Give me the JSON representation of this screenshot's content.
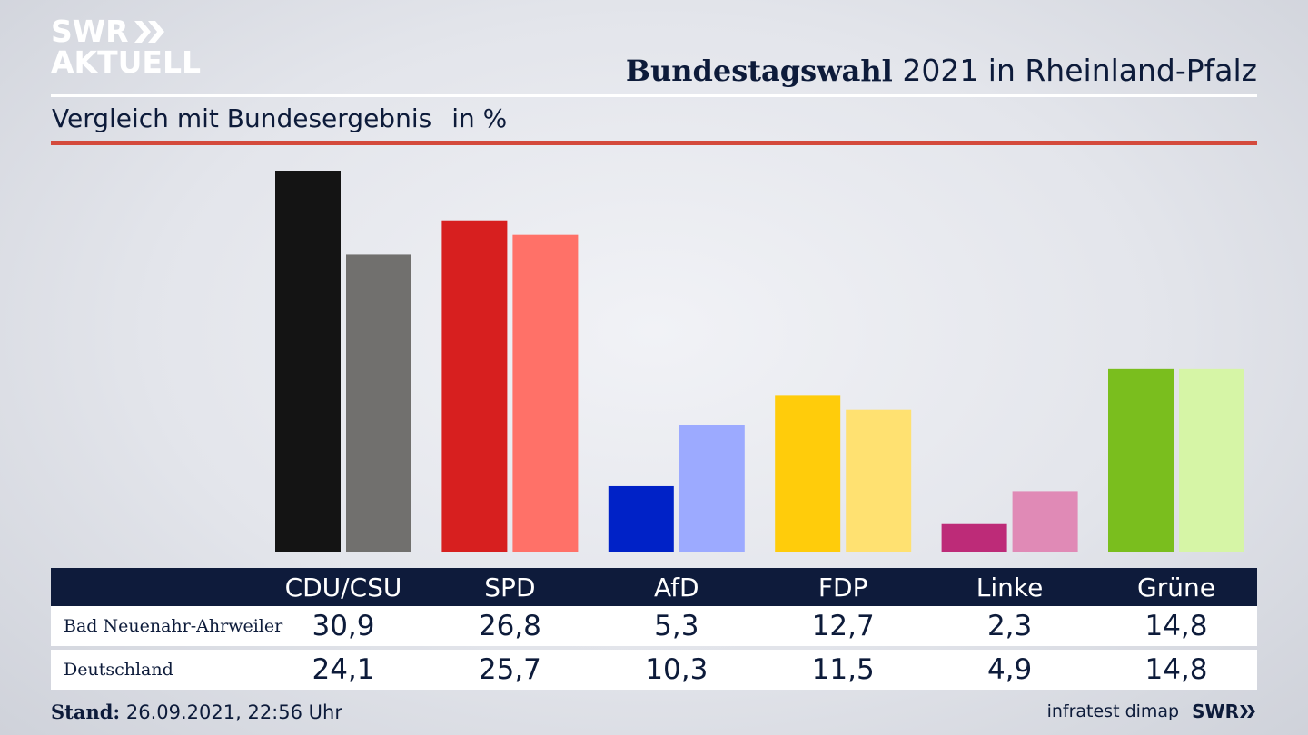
{
  "brand": {
    "line1": "SWR",
    "line2": "AKTUELL"
  },
  "header": {
    "title_bold": "Bundestagswahl",
    "title_rest": "2021 in Rheinland-Pfalz",
    "subtitle": "Vergleich mit Bundesergebnis",
    "unit": "in %"
  },
  "colors": {
    "navy": "#0e1b3b",
    "accent_red_line": "#d44a3c"
  },
  "chart_data": {
    "type": "bar",
    "title": "Bundestagswahl 2021 in Rheinland-Pfalz – Vergleich mit Bundesergebnis",
    "ylabel": "in %",
    "ylim": [
      0,
      31
    ],
    "categories": [
      "CDU/CSU",
      "SPD",
      "AfD",
      "FDP",
      "Linke",
      "Grüne"
    ],
    "series": [
      {
        "name": "Bad Neuenahr-Ahrweiler",
        "values": [
          30.9,
          26.8,
          5.3,
          12.7,
          2.3,
          14.8
        ],
        "labels": [
          "30,9",
          "26,8",
          "5,3",
          "12,7",
          "2,3",
          "14,8"
        ],
        "colors": [
          "#141414",
          "#d71f1f",
          "#0022c7",
          "#ffcc0b",
          "#bd2b78",
          "#7abe1e"
        ]
      },
      {
        "name": "Deutschland",
        "values": [
          24.1,
          25.7,
          10.3,
          11.5,
          4.9,
          14.8
        ],
        "labels": [
          "24,1",
          "25,7",
          "10,3",
          "11,5",
          "4,9",
          "14,8"
        ],
        "colors": [
          "#71706e",
          "#ff7168",
          "#9caaff",
          "#ffe171",
          "#e08ab6",
          "#d6f5a6"
        ]
      }
    ]
  },
  "footer": {
    "stand_label": "Stand:",
    "stand_value": "26.09.2021, 22:56 Uhr",
    "source": "infratest dimap",
    "brand": "SWR"
  }
}
